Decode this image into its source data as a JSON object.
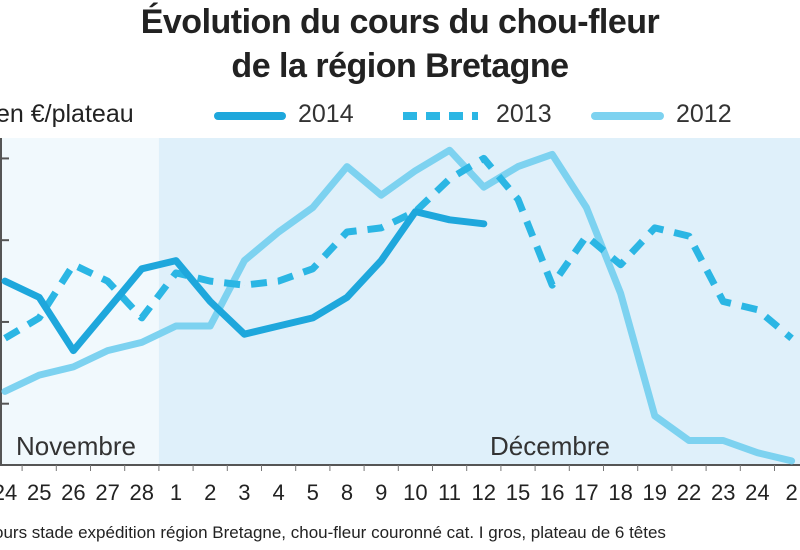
{
  "chart_data": {
    "type": "line",
    "title": "Évolution du cours du chou-fleur",
    "subtitle": "de la région Bretagne",
    "ylabel": "en €/plateau",
    "x": [
      "24",
      "25",
      "26",
      "27",
      "28",
      "1",
      "2",
      "3",
      "4",
      "5",
      "8",
      "9",
      "10",
      "11",
      "12",
      "15",
      "16",
      "17",
      "18",
      "19",
      "22",
      "23",
      "24",
      "2"
    ],
    "months": [
      {
        "label": "Novembre",
        "from": 0,
        "to": 4
      },
      {
        "label": "Décembre",
        "from": 5,
        "to": 23
      }
    ],
    "series": [
      {
        "name": "2014",
        "color": "#1ea7dc",
        "style": "solid",
        "values": [
          3.0,
          2.6,
          1.3,
          2.3,
          3.3,
          3.5,
          2.5,
          1.7,
          1.9,
          2.1,
          2.6,
          3.5,
          4.7,
          4.5,
          4.4,
          null,
          null,
          null,
          null,
          null,
          null,
          null,
          null,
          null
        ]
      },
      {
        "name": "2013",
        "color": "#2bb6e4",
        "style": "dashed",
        "values": [
          1.6,
          2.1,
          3.4,
          3.0,
          2.1,
          3.2,
          3.0,
          2.9,
          3.0,
          3.3,
          4.2,
          4.3,
          4.7,
          5.5,
          6.0,
          5.0,
          2.9,
          4.1,
          3.4,
          4.3,
          4.1,
          2.5,
          2.3,
          1.6
        ]
      },
      {
        "name": "2012",
        "color": "#7dd2f0",
        "style": "solid",
        "values": [
          0.3,
          0.7,
          0.9,
          1.3,
          1.5,
          1.9,
          1.9,
          3.5,
          4.2,
          4.8,
          5.8,
          5.1,
          5.7,
          6.2,
          5.3,
          5.8,
          6.1,
          4.8,
          2.7,
          -0.3,
          -0.9,
          -0.9,
          -1.2,
          -1.4
        ]
      }
    ],
    "ylim": [
      -1.5,
      6.5
    ],
    "grid": false,
    "legend": "top",
    "source": "ours stade expédition région Bretagne, chou-fleur couronné cat. I gros, plateau de 6 têtes"
  }
}
